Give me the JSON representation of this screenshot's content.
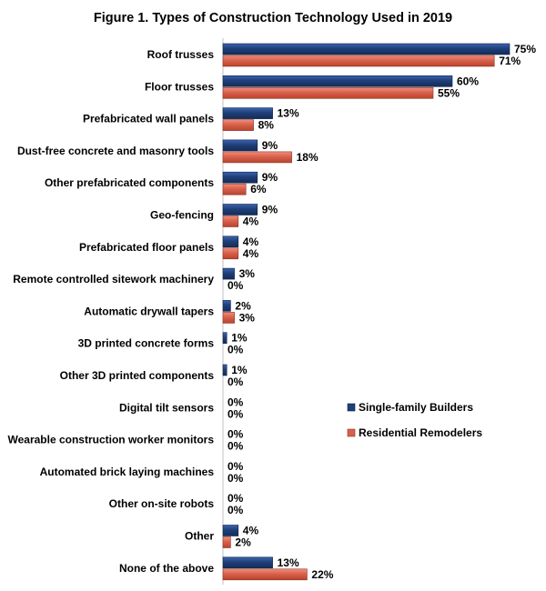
{
  "chart_data": {
    "type": "bar",
    "orientation": "horizontal",
    "title": "Figure 1. Types of Construction Technology Used in 2019",
    "categories": [
      "Roof trusses",
      "Floor trusses",
      "Prefabricated wall panels",
      "Dust-free concrete and masonry tools",
      "Other prefabricated components",
      "Geo-fencing",
      "Prefabricated floor panels",
      "Remote controlled sitework machinery",
      "Automatic drywall tapers",
      "3D printed concrete forms",
      "Other 3D printed components",
      "Digital tilt sensors",
      "Wearable construction worker monitors",
      "Automated brick laying machines",
      "Other on-site robots",
      "Other",
      "None of the above"
    ],
    "series": [
      {
        "name": "Single-family Builders",
        "color": "#1f3f7a",
        "values": [
          75,
          60,
          13,
          9,
          9,
          9,
          4,
          3,
          2,
          1,
          1,
          0,
          0,
          0,
          0,
          4,
          13
        ]
      },
      {
        "name": "Residential Remodelers",
        "color": "#d9614c",
        "values": [
          71,
          55,
          8,
          18,
          6,
          4,
          4,
          0,
          3,
          0,
          0,
          0,
          0,
          0,
          0,
          2,
          22
        ]
      }
    ],
    "value_suffix": "%",
    "xlim": [
      0,
      80
    ],
    "legend_position": "right",
    "grid": false
  }
}
